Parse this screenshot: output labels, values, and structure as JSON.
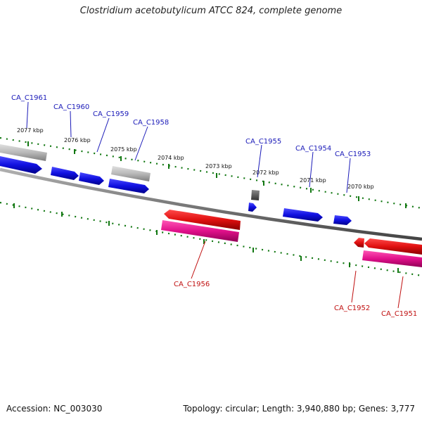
{
  "title": "Clostridium acetobutylicum ATCC 824, complete genome",
  "footer": {
    "accession_label": "Accession: NC_003030",
    "topology_label": "Topology: circular; Length: 3,940,880 bp; Genes: 3,777"
  },
  "colors": {
    "forward_gene": "#1010e0",
    "reverse_gene": "#e01010",
    "reverse_rna": "#e0108a",
    "pseudo_gene": "#b8b8b8",
    "backbone": "#808080",
    "tick": "#117711",
    "forward_label": "#1a1ab8",
    "reverse_label": "#c01010"
  },
  "scale": {
    "tick_labels": [
      "2077 kbp",
      "2076 kbp",
      "2075 kbp",
      "2074 kbp",
      "2073 kbp",
      "2072 kbp",
      "2071 kbp",
      "2070 kbp"
    ]
  },
  "genes": {
    "forward": [
      "CA_C1961",
      "CA_C1960",
      "CA_C1959",
      "CA_C1958",
      "CA_C1955",
      "CA_C1954",
      "CA_C1953"
    ],
    "reverse": [
      "CA_C1956",
      "CA_C1952",
      "CA_C1951"
    ]
  }
}
